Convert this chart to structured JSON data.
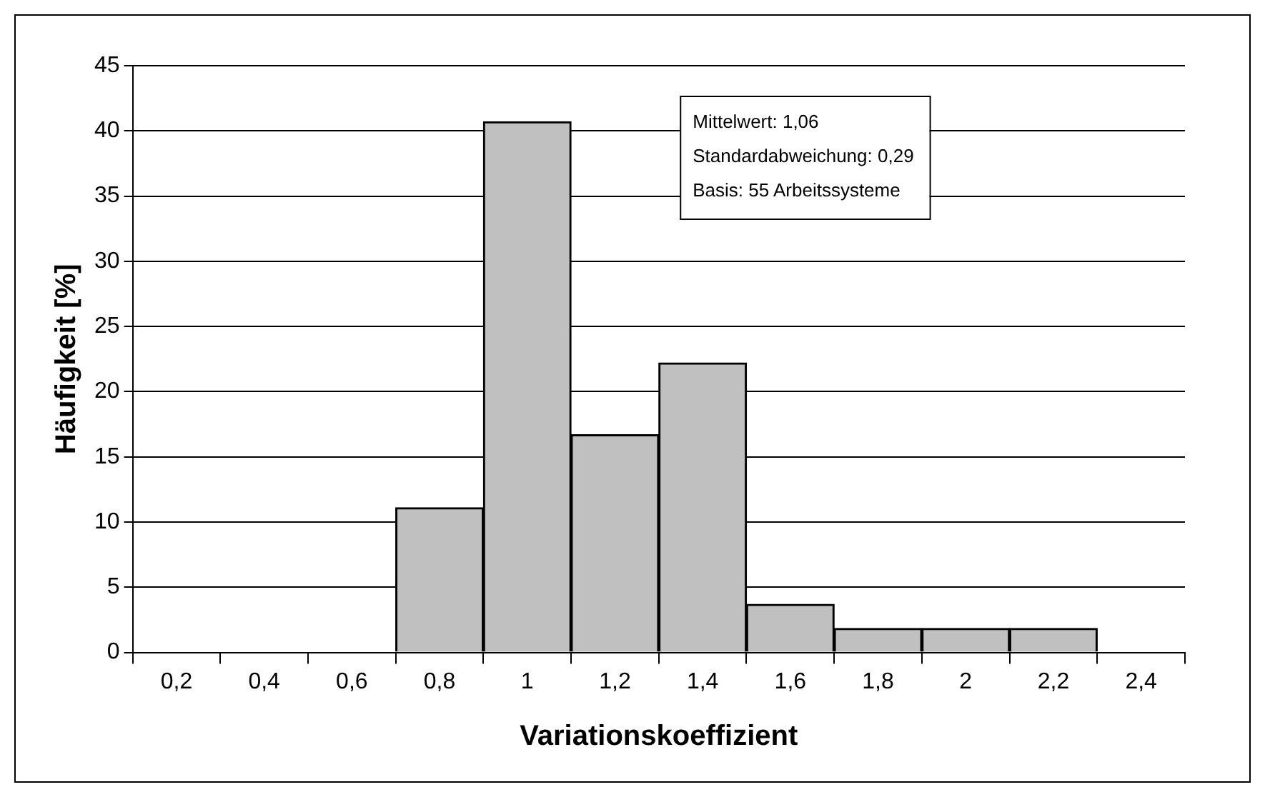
{
  "chart_data": {
    "type": "bar",
    "xlabel": "Variationskoeffizient",
    "ylabel": "Häufigkeit [%]",
    "categories": [
      "0,2",
      "0,4",
      "0,6",
      "0,8",
      "1",
      "1,2",
      "1,4",
      "1,6",
      "1,8",
      "2",
      "2,2",
      "2,4"
    ],
    "values": [
      0,
      0,
      0,
      11.1,
      40.7,
      16.7,
      22.2,
      3.7,
      1.85,
      1.85,
      1.85,
      0
    ],
    "color": "#c0c0c0",
    "ylim": [
      0,
      45
    ],
    "yticks": [
      0,
      5,
      10,
      15,
      20,
      25,
      30,
      35,
      40,
      45
    ],
    "grid": "y",
    "legend": false,
    "annotations": [
      "Mittelwert: 1,06",
      "Standardabweichung: 0,29",
      "Basis: 55 Arbeitssysteme"
    ]
  }
}
